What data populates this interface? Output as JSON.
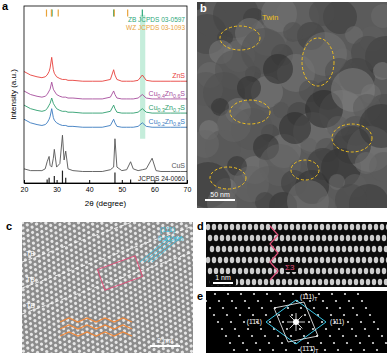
{
  "chart_data": {
    "type": "line",
    "label": "a",
    "x_label": "2θ (degree)",
    "y_label": "Intensity (a.u.)",
    "x": [
      20,
      22,
      24,
      25.5,
      26.5,
      27.1,
      27.7,
      28.0,
      28.5,
      29.0,
      29.3,
      30,
      31,
      31.8,
      32.3,
      32.8,
      33.5,
      35,
      38,
      41,
      44,
      46.5,
      47.5,
      47.9,
      48.5,
      50,
      51.5,
      52.7,
      53.5,
      55,
      56.3,
      57.5,
      59.3,
      60.5,
      62,
      65,
      68,
      70
    ],
    "xlim": [
      20,
      70
    ],
    "xticks": [
      20,
      30,
      40,
      50,
      60,
      70
    ],
    "ylim": [
      0,
      100
    ],
    "tick_labels": "x",
    "highlight_band": {
      "x": [
        55.6,
        57.2
      ],
      "y": [
        25,
        95
      ],
      "color": "#7fd6b0"
    },
    "series": [
      {
        "name": "ZnS",
        "type": "line",
        "color": "#e8413c",
        "values": [
          63,
          61,
          60,
          59.5,
          60,
          61,
          63,
          65,
          71,
          64,
          62,
          60,
          59,
          58.5,
          58.5,
          58.5,
          58,
          58,
          57.5,
          57.5,
          57.5,
          58.5,
          64,
          61,
          58.5,
          57.5,
          57.5,
          57.5,
          57.5,
          58,
          61,
          58,
          57.5,
          57.5,
          57.5,
          57.5,
          57.5,
          57.5
        ]
      },
      {
        "name": "Cu0.4Zn0.6S",
        "type": "line",
        "color": "#a64d9c",
        "values": [
          52,
          50,
          49,
          48.5,
          49,
          50,
          52,
          53,
          57,
          53,
          52,
          50,
          49,
          48.5,
          48.5,
          48.5,
          48,
          48,
          47.5,
          47.5,
          47.5,
          48.5,
          52,
          50,
          48,
          47.5,
          47.5,
          47.5,
          47.5,
          48,
          50,
          48,
          47.5,
          47.5,
          47.5,
          47.5,
          47.5,
          47.5
        ]
      },
      {
        "name": "Cu0.3Zn0.7S",
        "type": "line",
        "color": "#2e9e6e",
        "values": [
          44,
          42,
          41,
          40.5,
          41,
          42,
          44,
          45,
          48,
          45,
          44,
          42,
          41,
          40.5,
          40.5,
          40.5,
          40,
          40,
          39.5,
          39.5,
          39.5,
          40.5,
          44,
          42,
          40,
          39.5,
          39.5,
          39.5,
          39.5,
          40,
          42,
          40,
          39.5,
          39.5,
          39.5,
          39.5,
          39.5,
          39.5
        ]
      },
      {
        "name": "Cu0.2Zn0.8S",
        "type": "line",
        "color": "#3a7bbf",
        "values": [
          36,
          34,
          33,
          32.5,
          33,
          34,
          36,
          37.5,
          42,
          37,
          35.5,
          34,
          33,
          32.5,
          32.5,
          32.5,
          32,
          32,
          31.5,
          31.5,
          31.5,
          32.5,
          36,
          34,
          32,
          31.5,
          31.5,
          31.5,
          31.5,
          32,
          34,
          32,
          31.5,
          31.5,
          31.5,
          31.5,
          31.5,
          31.5
        ]
      },
      {
        "name": "CuS",
        "type": "line",
        "color": "#555555",
        "values": [
          8,
          7,
          7,
          7,
          8,
          12,
          15,
          10,
          9,
          14,
          19,
          9,
          11,
          27,
          13,
          18,
          8,
          7,
          6.5,
          6.5,
          6.5,
          7.5,
          9,
          25,
          9,
          7,
          7.5,
          12,
          8,
          7,
          7.5,
          8,
          14,
          7,
          6.5,
          6.5,
          6.5,
          6.5
        ]
      },
      {
        "name": "ZB JCPDS 03-0597",
        "type": "stick",
        "color": "#2ea87a",
        "base": 94,
        "x": [
          28.6,
          47.5,
          56.3
        ],
        "values": [
          4,
          4,
          4
        ]
      },
      {
        "name": "WZ JCPDS 03-1093",
        "type": "stick",
        "color": "#e8a33a",
        "base": 94,
        "x": [
          26.9,
          28.4,
          30.5,
          47.7,
          51.8
        ],
        "values": [
          4,
          4,
          4,
          4,
          4
        ]
      },
      {
        "name": "JCPDS 24-0060",
        "type": "stick",
        "color": "#222222",
        "base": 0,
        "x": [
          27.1,
          27.7,
          29.3,
          31.8,
          32.8,
          47.9,
          52.7
        ],
        "values": [
          2,
          3,
          4,
          7,
          3,
          6,
          2
        ]
      }
    ]
  },
  "images": [
    {
      "label": "b",
      "annotations": [
        "Twin"
      ],
      "scale_bar": "50 nm"
    },
    {
      "label": "c",
      "annotations": [
        "TB",
        "TB",
        "TB"
      ],
      "spacing": {
        "plane": "(111)",
        "distance": "0.31 nm"
      },
      "scale_bar": "2 nm"
    },
    {
      "label": "d",
      "annotations": [
        "Σ3"
      ],
      "scale_bar": "1 nm"
    },
    {
      "label": "e",
      "spots": [
        {
          "text": "(111)",
          "sub": "T"
        },
        {
          "text": "(1̄1̄1)"
        },
        {
          "text": "(111)"
        },
        {
          "text": "(1̄1̄1̄)",
          "sub": "T"
        }
      ]
    }
  ]
}
